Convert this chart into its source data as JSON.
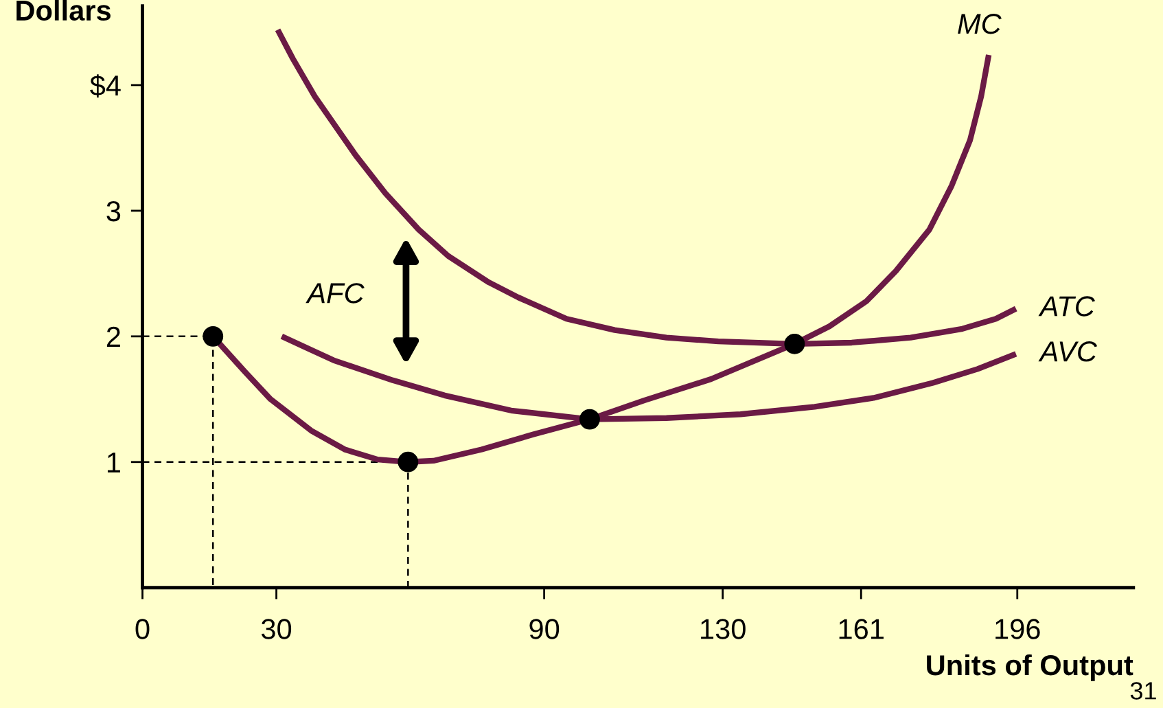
{
  "chart_data": {
    "type": "line",
    "xlabel": "Units of Output",
    "ylabel": "Dollars",
    "xlim": [
      0,
      222
    ],
    "ylim": [
      0,
      4.63
    ],
    "xticks": [
      0,
      30,
      90,
      130,
      161,
      196
    ],
    "yticks": [
      {
        "value": 1,
        "label": "1"
      },
      {
        "value": 2,
        "label": "2"
      },
      {
        "value": 3,
        "label": "3"
      },
      {
        "value": 4,
        "label": "$4"
      }
    ],
    "grid": false,
    "legend": false,
    "line_style": "solid",
    "marker": "none",
    "series": [
      {
        "name": "MC",
        "color": "#6b1a45",
        "x": [
          15.8,
          22.9,
          28.7,
          37.8,
          45.3,
          52.7,
          59.5,
          65.2,
          76.0,
          87.6,
          100.2,
          112.4,
          127.4,
          146.1,
          153.9,
          162.2,
          168.8,
          176.3,
          181.3,
          185.4,
          187.9,
          189.6
        ],
        "values": [
          2.0,
          1.72,
          1.5,
          1.25,
          1.1,
          1.02,
          1.0,
          1.01,
          1.1,
          1.22,
          1.34,
          1.49,
          1.66,
          1.94,
          2.08,
          2.28,
          2.52,
          2.85,
          3.2,
          3.56,
          3.91,
          4.24
        ]
      },
      {
        "name": "ATC",
        "color": "#6b1a45",
        "x": [
          30.3,
          33.7,
          38.6,
          47.8,
          54.4,
          61.9,
          68.5,
          77.6,
          84.2,
          95.0,
          105.8,
          117.4,
          129.0,
          146.1,
          158.9,
          172.1,
          183.7,
          191.2,
          195.7
        ],
        "values": [
          4.44,
          4.21,
          3.91,
          3.44,
          3.14,
          2.85,
          2.64,
          2.43,
          2.31,
          2.14,
          2.05,
          1.99,
          1.96,
          1.94,
          1.95,
          1.99,
          2.06,
          2.14,
          2.22
        ]
      },
      {
        "name": "AVC",
        "color": "#6b1a45",
        "x": [
          31.2,
          42.8,
          56.1,
          67.7,
          82.6,
          100.2,
          117.4,
          134.0,
          150.6,
          163.8,
          177.1,
          187.1,
          195.7
        ],
        "values": [
          2.0,
          1.81,
          1.65,
          1.53,
          1.41,
          1.34,
          1.35,
          1.38,
          1.44,
          1.51,
          1.63,
          1.74,
          1.86
        ]
      },
      {
        "type": "line",
        "line_style": "dashed",
        "color": "#000000",
        "x": [
          0,
          15.8,
          15.8
        ],
        "values": [
          2,
          2,
          0
        ]
      },
      {
        "type": "line",
        "line_style": "dashed",
        "color": "#000000",
        "x": [
          0,
          59.5,
          59.5
        ],
        "values": [
          1,
          1,
          0
        ]
      },
      {
        "type": "scatter",
        "marker": "circle",
        "color": "#000000",
        "x": [
          15.8,
          59.5,
          100.2,
          146.1
        ],
        "values": [
          2,
          1,
          1.34,
          1.94
        ]
      }
    ],
    "annotations": [
      "AFC",
      "31"
    ]
  }
}
